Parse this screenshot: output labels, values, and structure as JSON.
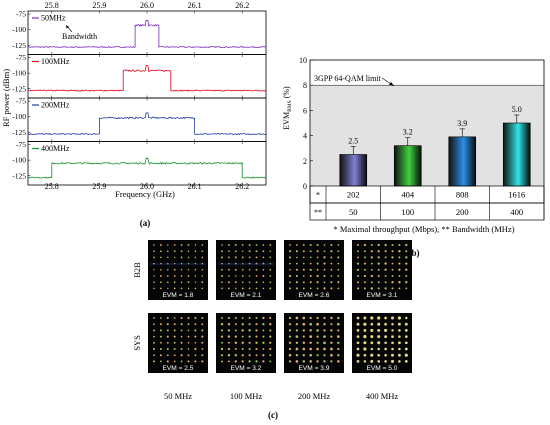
{
  "panel_labels": {
    "a": "(a)",
    "b": "(b)",
    "c": "(c)"
  },
  "chart_data": [
    {
      "type": "line",
      "panel": "a",
      "xlabel": "Frequency (GHz)",
      "ylabel": "RF power (dBm)",
      "xlim": [
        25.75,
        26.25
      ],
      "x_ticks": [
        "25.8",
        "25.9",
        "26.0",
        "26.1",
        "26.2"
      ],
      "y_ticks": [
        "-75",
        "-100",
        "-125"
      ],
      "ylim": [
        -140,
        -70
      ],
      "noise_floor": -128,
      "annotation": "Bandwidth",
      "colors": {
        "frame": "#000000"
      },
      "series": [
        {
          "name": "50MHz",
          "color": "#7b2fbe",
          "band": [
            25.975,
            26.025
          ],
          "level": -93
        },
        {
          "name": "100MHz",
          "color": "#e3001b",
          "band": [
            25.95,
            26.05
          ],
          "level": -96
        },
        {
          "name": "200MHz",
          "color": "#1f3fa0",
          "band": [
            25.9,
            26.1
          ],
          "level": -102
        },
        {
          "name": "400MHz",
          "color": "#12912c",
          "band": [
            25.8,
            26.2
          ],
          "level": -105
        }
      ]
    },
    {
      "type": "bar",
      "panel": "b",
      "ylabel": "EVM",
      "ylabel_sub": "RMS",
      "ylabel_unit": " (%)",
      "ylim": [
        0,
        10
      ],
      "y_ticks": [
        "0",
        "2",
        "4",
        "6",
        "8",
        "10"
      ],
      "limit_line": {
        "value": 8,
        "label": "3GPP 64-QAM limit"
      },
      "categories": [
        "50",
        "100",
        "200",
        "400"
      ],
      "values": [
        2.5,
        3.2,
        3.9,
        5.0
      ],
      "data_labels": [
        "2.5",
        "3.2",
        "3.9",
        "5.0"
      ],
      "bar_colors": [
        "#7d7fd6",
        "#3ed33e",
        "#2b8fe8",
        "#2fe6e6"
      ],
      "table": {
        "row_labels": [
          "*",
          "**"
        ],
        "throughput": [
          "202",
          "404",
          "808",
          "1616"
        ],
        "bandwidth": [
          "50",
          "100",
          "200",
          "400"
        ]
      },
      "footnote": "* Maximal throughput (Mbps), ** Bandwidth (MHz)"
    }
  ],
  "constellations": {
    "rows": [
      "B2B",
      "SYS"
    ],
    "columns": [
      "50 MHz",
      "100 MHz",
      "200 MHz",
      "400 MHz"
    ],
    "evm_labels": [
      [
        "EVM = 1.8",
        "EVM = 2.1",
        "EVM = 2.6",
        "EVM = 3.1"
      ],
      [
        "EVM = 2.5",
        "EVM = 3.2",
        "EVM = 3.9",
        "EVM = 5.0"
      ]
    ],
    "evm_values": [
      [
        1.8,
        2.1,
        2.6,
        3.1
      ],
      [
        2.5,
        3.2,
        3.9,
        5.0
      ]
    ]
  }
}
